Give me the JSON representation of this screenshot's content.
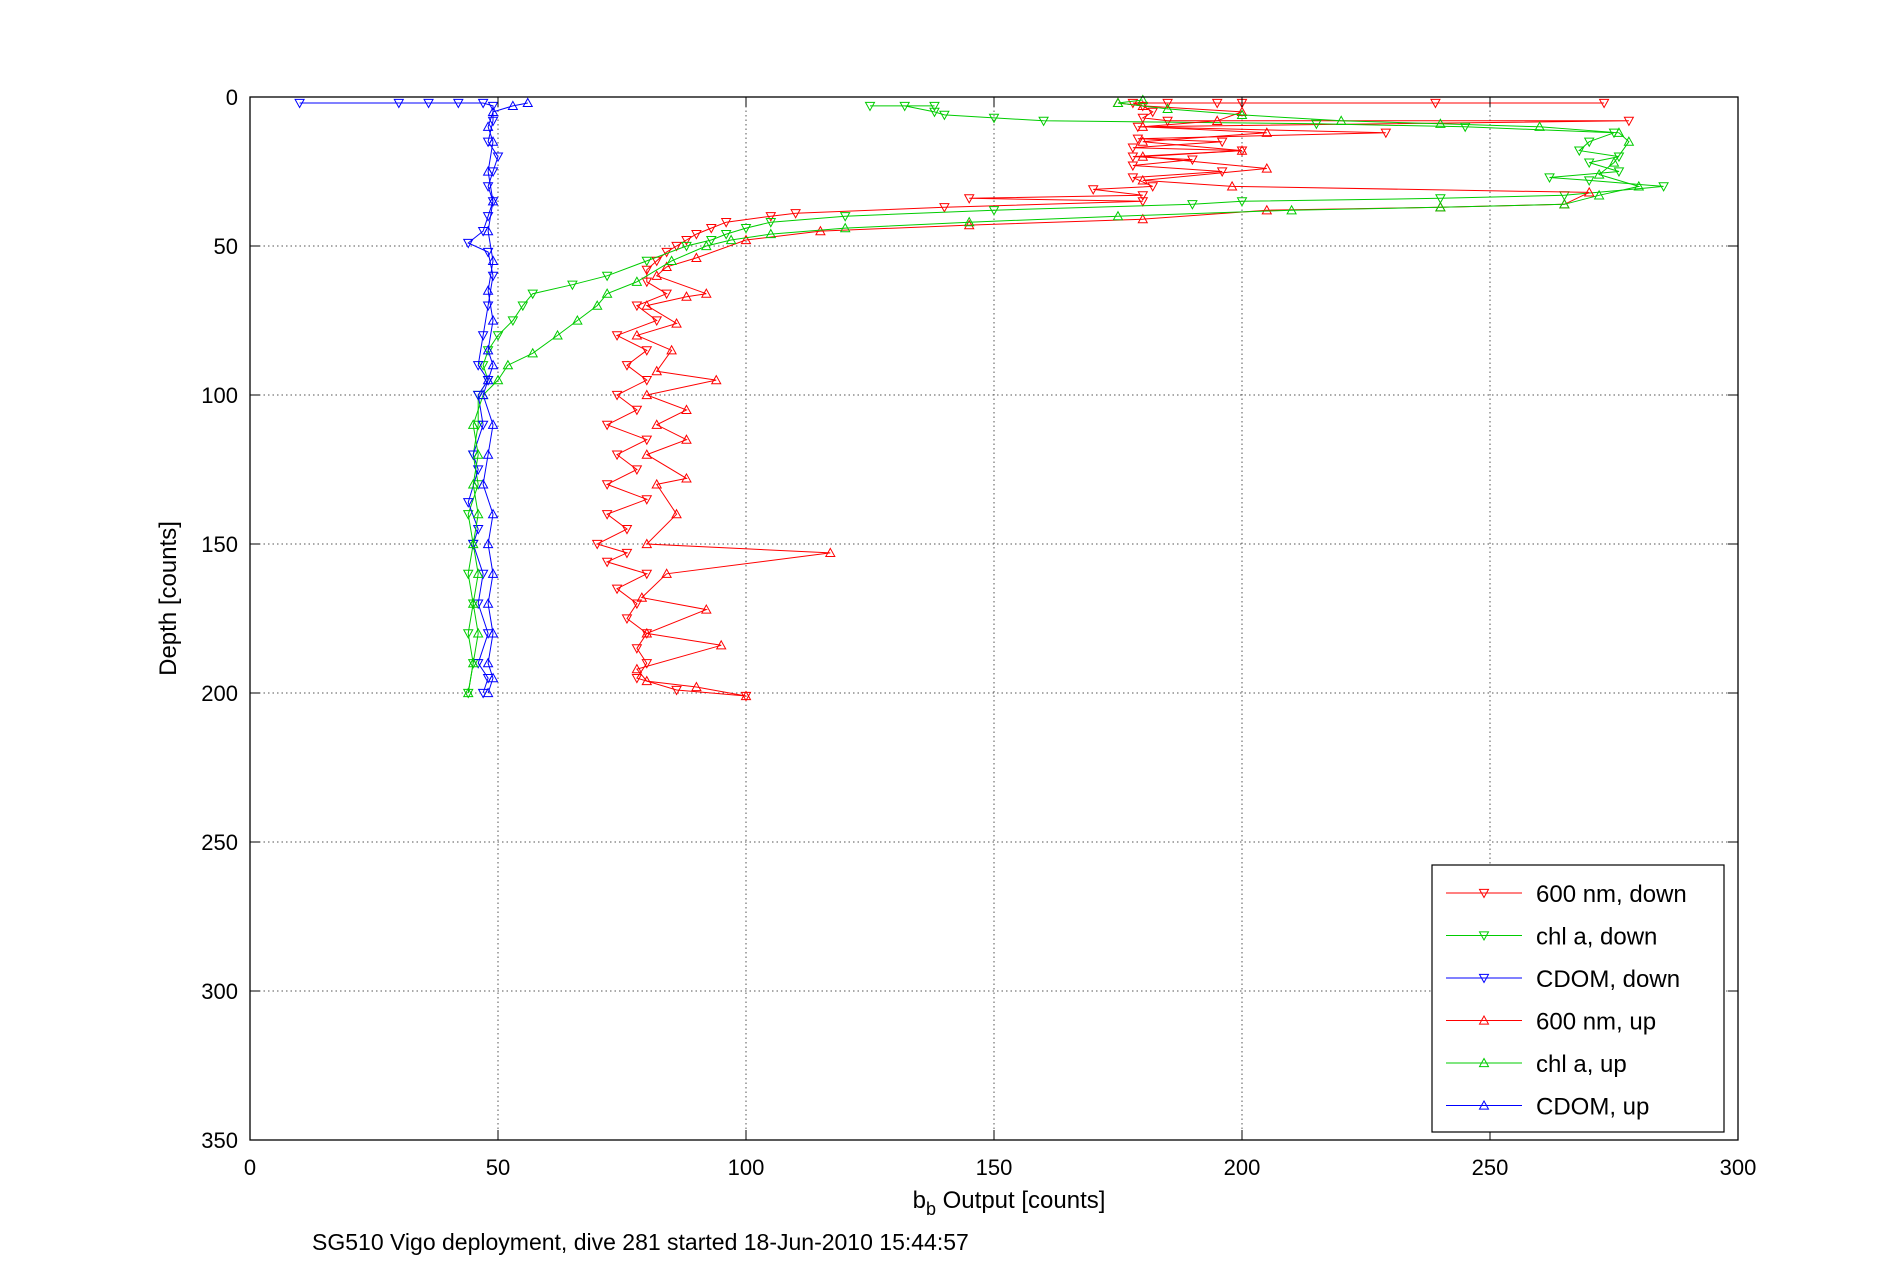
{
  "chart_data": {
    "type": "line",
    "xlabel_main": "b",
    "xlabel_sub": "b",
    "xlabel_rest": " Output [counts]",
    "ylabel": "Depth [counts]",
    "caption": "SG510 Vigo deployment, dive 281 started 18-Jun-2010 15:44:57",
    "xlim": [
      0,
      300
    ],
    "ylim": [
      0,
      350
    ],
    "y_reversed": true,
    "grid": true,
    "legend_position": "bottom-right",
    "x_ticks": [
      0,
      50,
      100,
      150,
      200,
      250,
      300
    ],
    "y_ticks": [
      0,
      50,
      100,
      150,
      200,
      250,
      300,
      350
    ],
    "x_tick_labels": [
      "0",
      "50",
      "100",
      "150",
      "200",
      "250",
      "300"
    ],
    "y_tick_labels": [
      "0",
      "50",
      "100",
      "150",
      "200",
      "250",
      "300",
      "350"
    ],
    "series": [
      {
        "name": "600 nm, down",
        "color": "#ff0000",
        "marker": "triangle-down",
        "points": [
          [
            273,
            2
          ],
          [
            239,
            2
          ],
          [
            200,
            2
          ],
          [
            195,
            2
          ],
          [
            185,
            2
          ],
          [
            178,
            2
          ],
          [
            180,
            3
          ],
          [
            182,
            5
          ],
          [
            180,
            7
          ],
          [
            185,
            8
          ],
          [
            278,
            8
          ],
          [
            179,
            10
          ],
          [
            229,
            12
          ],
          [
            179,
            14
          ],
          [
            196,
            15
          ],
          [
            178,
            17
          ],
          [
            200,
            18
          ],
          [
            178,
            20
          ],
          [
            190,
            21
          ],
          [
            178,
            23
          ],
          [
            196,
            25
          ],
          [
            178,
            27
          ],
          [
            182,
            30
          ],
          [
            170,
            31
          ],
          [
            180,
            33
          ],
          [
            145,
            34
          ],
          [
            180,
            35
          ],
          [
            140,
            37
          ],
          [
            110,
            39
          ],
          [
            105,
            40
          ],
          [
            96,
            42
          ],
          [
            93,
            44
          ],
          [
            90,
            46
          ],
          [
            88,
            48
          ],
          [
            86,
            50
          ],
          [
            84,
            52
          ],
          [
            82,
            55
          ],
          [
            80,
            58
          ],
          [
            80,
            62
          ],
          [
            84,
            66
          ],
          [
            78,
            70
          ],
          [
            82,
            75
          ],
          [
            74,
            80
          ],
          [
            80,
            85
          ],
          [
            76,
            90
          ],
          [
            80,
            95
          ],
          [
            74,
            100
          ],
          [
            78,
            105
          ],
          [
            72,
            110
          ],
          [
            80,
            115
          ],
          [
            74,
            120
          ],
          [
            78,
            125
          ],
          [
            72,
            130
          ],
          [
            80,
            135
          ],
          [
            72,
            140
          ],
          [
            76,
            145
          ],
          [
            70,
            150
          ],
          [
            76,
            153
          ],
          [
            72,
            156
          ],
          [
            80,
            160
          ],
          [
            74,
            165
          ],
          [
            78,
            170
          ],
          [
            76,
            175
          ],
          [
            80,
            180
          ],
          [
            78,
            185
          ],
          [
            80,
            190
          ],
          [
            78,
            195
          ],
          [
            86,
            199
          ],
          [
            100,
            201
          ]
        ]
      },
      {
        "name": "chl a, down",
        "color": "#00cc00",
        "marker": "triangle-down",
        "points": [
          [
            138,
            3
          ],
          [
            125,
            3
          ],
          [
            132,
            3
          ],
          [
            138,
            5
          ],
          [
            140,
            6
          ],
          [
            150,
            7
          ],
          [
            160,
            8
          ],
          [
            215,
            9
          ],
          [
            245,
            10
          ],
          [
            275,
            12
          ],
          [
            270,
            15
          ],
          [
            268,
            18
          ],
          [
            276,
            20
          ],
          [
            270,
            22
          ],
          [
            276,
            25
          ],
          [
            262,
            27
          ],
          [
            270,
            28
          ],
          [
            285,
            30
          ],
          [
            265,
            33
          ],
          [
            240,
            34
          ],
          [
            200,
            35
          ],
          [
            190,
            36
          ],
          [
            150,
            38
          ],
          [
            120,
            40
          ],
          [
            105,
            42
          ],
          [
            100,
            44
          ],
          [
            96,
            46
          ],
          [
            93,
            48
          ],
          [
            88,
            50
          ],
          [
            80,
            55
          ],
          [
            72,
            60
          ],
          [
            65,
            63
          ],
          [
            57,
            66
          ],
          [
            55,
            70
          ],
          [
            53,
            75
          ],
          [
            50,
            80
          ],
          [
            48,
            85
          ],
          [
            47,
            90
          ],
          [
            48,
            95
          ],
          [
            46,
            100
          ],
          [
            46,
            110
          ],
          [
            45,
            120
          ],
          [
            46,
            130
          ],
          [
            44,
            140
          ],
          [
            45,
            150
          ],
          [
            44,
            160
          ],
          [
            45,
            170
          ],
          [
            44,
            180
          ],
          [
            45,
            190
          ],
          [
            44,
            200
          ]
        ]
      },
      {
        "name": "CDOM, down",
        "color": "#0000ff",
        "marker": "triangle-down",
        "points": [
          [
            10,
            2
          ],
          [
            30,
            2
          ],
          [
            36,
            2
          ],
          [
            42,
            2
          ],
          [
            47,
            2
          ],
          [
            49,
            3
          ],
          [
            49,
            8
          ],
          [
            48,
            15
          ],
          [
            50,
            20
          ],
          [
            49,
            25
          ],
          [
            48,
            30
          ],
          [
            49,
            35
          ],
          [
            48,
            40
          ],
          [
            47,
            45
          ],
          [
            44,
            49
          ],
          [
            48,
            52
          ],
          [
            49,
            60
          ],
          [
            48,
            70
          ],
          [
            47,
            80
          ],
          [
            46,
            90
          ],
          [
            48,
            95
          ],
          [
            46,
            100
          ],
          [
            47,
            110
          ],
          [
            45,
            120
          ],
          [
            46,
            125
          ],
          [
            44,
            136
          ],
          [
            46,
            145
          ],
          [
            45,
            150
          ],
          [
            47,
            160
          ],
          [
            46,
            170
          ],
          [
            48,
            180
          ],
          [
            46,
            190
          ],
          [
            48,
            195
          ],
          [
            47,
            200
          ]
        ]
      },
      {
        "name": "600 nm, up",
        "color": "#ff0000",
        "marker": "triangle-up",
        "points": [
          [
            100,
            201
          ],
          [
            90,
            198
          ],
          [
            80,
            196
          ],
          [
            78,
            192
          ],
          [
            95,
            184
          ],
          [
            80,
            180
          ],
          [
            92,
            172
          ],
          [
            79,
            168
          ],
          [
            84,
            160
          ],
          [
            117,
            153
          ],
          [
            80,
            150
          ],
          [
            86,
            140
          ],
          [
            82,
            130
          ],
          [
            88,
            128
          ],
          [
            80,
            120
          ],
          [
            88,
            115
          ],
          [
            82,
            110
          ],
          [
            88,
            105
          ],
          [
            80,
            100
          ],
          [
            94,
            95
          ],
          [
            82,
            92
          ],
          [
            85,
            85
          ],
          [
            78,
            80
          ],
          [
            86,
            76
          ],
          [
            80,
            70
          ],
          [
            88,
            67
          ],
          [
            92,
            66
          ],
          [
            82,
            60
          ],
          [
            84,
            57
          ],
          [
            90,
            54
          ],
          [
            100,
            48
          ],
          [
            115,
            45
          ],
          [
            145,
            43
          ],
          [
            180,
            41
          ],
          [
            205,
            38
          ],
          [
            240,
            37
          ],
          [
            265,
            36
          ],
          [
            270,
            32
          ],
          [
            198,
            30
          ],
          [
            180,
            28
          ],
          [
            205,
            24
          ],
          [
            180,
            20
          ],
          [
            200,
            18
          ],
          [
            180,
            15
          ],
          [
            205,
            12
          ],
          [
            180,
            10
          ],
          [
            195,
            8
          ],
          [
            200,
            5
          ],
          [
            180,
            3
          ],
          [
            175,
            2
          ]
        ]
      },
      {
        "name": "chl a, up",
        "color": "#00cc00",
        "marker": "triangle-up",
        "points": [
          [
            44,
            200
          ],
          [
            45,
            190
          ],
          [
            46,
            180
          ],
          [
            45,
            170
          ],
          [
            46,
            160
          ],
          [
            45,
            150
          ],
          [
            46,
            140
          ],
          [
            45,
            130
          ],
          [
            46,
            120
          ],
          [
            45,
            110
          ],
          [
            47,
            100
          ],
          [
            50,
            95
          ],
          [
            52,
            90
          ],
          [
            57,
            86
          ],
          [
            62,
            80
          ],
          [
            66,
            75
          ],
          [
            70,
            70
          ],
          [
            72,
            66
          ],
          [
            78,
            62
          ],
          [
            85,
            55
          ],
          [
            92,
            50
          ],
          [
            97,
            48
          ],
          [
            105,
            46
          ],
          [
            120,
            44
          ],
          [
            145,
            42
          ],
          [
            175,
            40
          ],
          [
            210,
            38
          ],
          [
            240,
            37
          ],
          [
            265,
            36
          ],
          [
            272,
            33
          ],
          [
            280,
            30
          ],
          [
            272,
            26
          ],
          [
            275,
            22
          ],
          [
            278,
            15
          ],
          [
            276,
            12
          ],
          [
            260,
            10
          ],
          [
            240,
            9
          ],
          [
            220,
            8
          ],
          [
            200,
            6
          ],
          [
            185,
            4
          ],
          [
            175,
            2
          ],
          [
            180,
            1
          ]
        ]
      },
      {
        "name": "CDOM, up",
        "color": "#0000ff",
        "marker": "triangle-up",
        "points": [
          [
            48,
            200
          ],
          [
            49,
            195
          ],
          [
            48,
            190
          ],
          [
            49,
            180
          ],
          [
            48,
            170
          ],
          [
            49,
            160
          ],
          [
            48,
            150
          ],
          [
            49,
            140
          ],
          [
            47,
            130
          ],
          [
            48,
            120
          ],
          [
            49,
            110
          ],
          [
            47,
            100
          ],
          [
            48,
            95
          ],
          [
            49,
            90
          ],
          [
            48,
            85
          ],
          [
            49,
            75
          ],
          [
            48,
            65
          ],
          [
            49,
            55
          ],
          [
            48,
            45
          ],
          [
            49,
            35
          ],
          [
            48,
            25
          ],
          [
            49,
            15
          ],
          [
            48,
            10
          ],
          [
            49,
            5
          ],
          [
            53,
            3
          ],
          [
            56,
            2
          ]
        ]
      }
    ]
  }
}
